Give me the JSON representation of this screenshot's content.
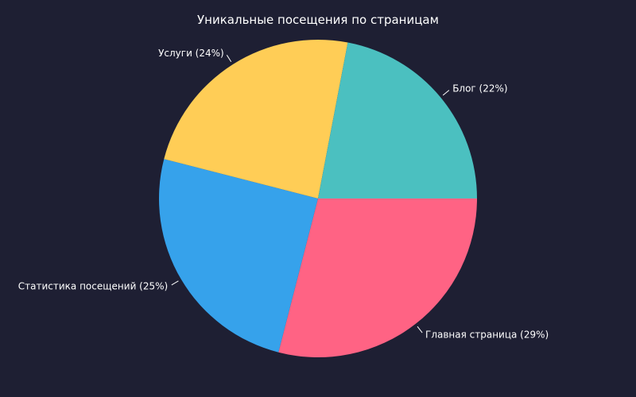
{
  "chart_data": {
    "type": "pie",
    "title": "Уникальные посещения по страницам",
    "slices": [
      {
        "label": "Главная страница",
        "percent": 29,
        "color": "#ff6384"
      },
      {
        "label": "Статистика посещений",
        "percent": 25,
        "color": "#36a2eb"
      },
      {
        "label": "Услуги",
        "percent": 24,
        "color": "#ffcd56"
      },
      {
        "label": "Блог",
        "percent": 22,
        "color": "#4bc0c0"
      }
    ],
    "background": "#1e1f33",
    "start_angle_deg": 0,
    "direction": "clockwise"
  }
}
